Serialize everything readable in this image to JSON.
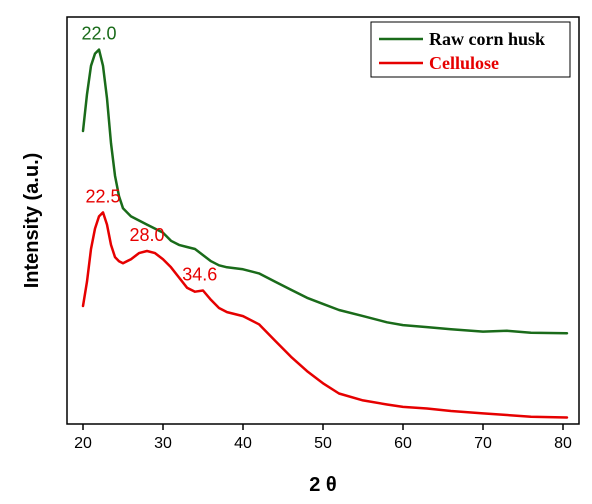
{
  "chart_data": {
    "type": "line",
    "title": "",
    "xlabel": "2 θ",
    "ylabel": "Intensity (a.u.)",
    "xlim": [
      18,
      82
    ],
    "ylim": [
      0,
      100
    ],
    "x_ticks": [
      20,
      30,
      40,
      50,
      60,
      70,
      80
    ],
    "y_ticks_shown": false,
    "grid": false,
    "legend_position": "top-right",
    "series": [
      {
        "name": "Raw corn husk",
        "color": "#1a6b1a",
        "x": [
          20,
          20.5,
          21,
          21.5,
          22,
          22.5,
          23,
          23.5,
          24,
          24.5,
          25,
          26,
          27,
          28,
          29,
          30,
          31,
          32,
          33,
          34,
          35,
          36,
          37,
          38,
          40,
          42,
          44,
          46,
          48,
          50,
          52,
          55,
          58,
          60,
          63,
          66,
          70,
          73,
          76,
          80.5
        ],
        "values": [
          72,
          81,
          88,
          91,
          92,
          88,
          80,
          69,
          61,
          56,
          53,
          51,
          50,
          49,
          48,
          47,
          45,
          44,
          43.5,
          43,
          41.5,
          40,
          39,
          38.5,
          38,
          37,
          35,
          33,
          31,
          29.5,
          28,
          26.5,
          25,
          24.3,
          23.8,
          23.3,
          22.7,
          22.9,
          22.4,
          22.3
        ]
      },
      {
        "name": "Cellulose",
        "color": "#e60000",
        "x": [
          20,
          20.5,
          21,
          21.5,
          22,
          22.5,
          23,
          23.5,
          24,
          24.5,
          25,
          26,
          27,
          28,
          29,
          30,
          31,
          32,
          33,
          34,
          35,
          36,
          37,
          38,
          40,
          42,
          44,
          46,
          48,
          50,
          52,
          55,
          58,
          60,
          63,
          66,
          70,
          73,
          76,
          80.5
        ],
        "values": [
          29,
          35,
          43,
          48,
          51,
          52,
          49,
          44,
          41,
          40,
          39.5,
          40.5,
          42,
          42.5,
          42,
          40.5,
          38.5,
          36,
          33.5,
          32.5,
          32.8,
          30.5,
          28.5,
          27.5,
          26.5,
          24.5,
          20.5,
          16.5,
          13,
          10,
          7.5,
          5.8,
          4.8,
          4.2,
          3.8,
          3.2,
          2.6,
          2.2,
          1.8,
          1.6
        ]
      }
    ],
    "annotations": [
      {
        "text": "22.0",
        "x": 22.0,
        "y": 92,
        "series": 0
      },
      {
        "text": "22.5",
        "x": 22.5,
        "y": 52,
        "series": 1
      },
      {
        "text": "28.0",
        "x": 28.0,
        "y": 42.5,
        "series": 1
      },
      {
        "text": "34.6",
        "x": 34.6,
        "y": 32.8,
        "series": 1
      }
    ]
  }
}
